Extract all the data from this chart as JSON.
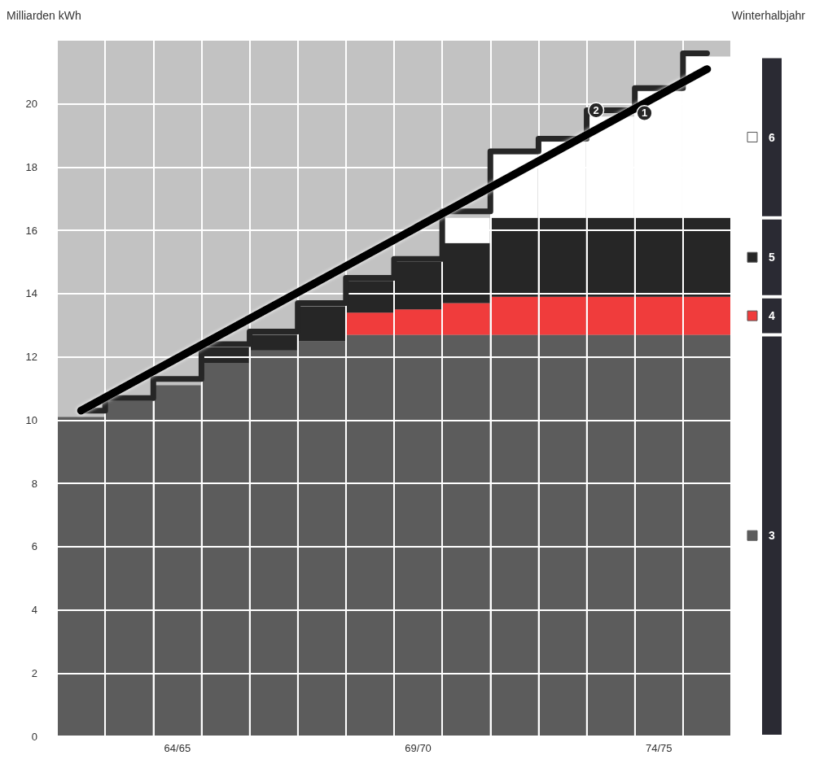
{
  "chart_data": {
    "type": "bar",
    "stacked": true,
    "ylabel": "Milliarden kWh",
    "xlabel": "Winterhalbjahr",
    "categories": [
      null,
      null,
      "64/65",
      null,
      null,
      null,
      null,
      "69/70",
      null,
      null,
      null,
      null,
      "74/75",
      null
    ],
    "series": [
      {
        "name": "3",
        "color": "#5c5c5c",
        "values": [
          10.1,
          10.6,
          11.1,
          11.8,
          12.2,
          12.5,
          12.7,
          12.7,
          12.7,
          12.7,
          12.7,
          12.7,
          12.7,
          12.7
        ]
      },
      {
        "name": "4",
        "color": "#f03c3c",
        "values": [
          0,
          0,
          0,
          0,
          0,
          0,
          0.7,
          0.8,
          1.0,
          1.2,
          1.2,
          1.2,
          1.2,
          1.2
        ]
      },
      {
        "name": "5",
        "color": "#262626",
        "values": [
          0,
          0,
          0,
          0.5,
          0.5,
          1.1,
          1.0,
          1.5,
          1.9,
          2.5,
          2.5,
          2.5,
          2.5,
          2.5
        ]
      },
      {
        "name": "6",
        "color": "#ffffff",
        "values": [
          0,
          0,
          0,
          0,
          0,
          0,
          0,
          0,
          0.8,
          2.0,
          2.4,
          3.2,
          4.0,
          5.1
        ]
      },
      {
        "name": "2",
        "type": "step",
        "color": "#262626",
        "values": [
          10.3,
          10.7,
          11.3,
          12.4,
          12.8,
          13.7,
          14.5,
          15.1,
          16.6,
          18.5,
          18.9,
          19.8,
          20.5,
          21.6
        ]
      },
      {
        "name": "1",
        "type": "line",
        "color": "#000000",
        "values": [
          10.3,
          null,
          null,
          null,
          null,
          null,
          null,
          null,
          null,
          null,
          null,
          null,
          null,
          21.1
        ]
      }
    ],
    "ylim": [
      0,
      22
    ],
    "yticks": [
      0,
      2,
      4,
      6,
      8,
      10,
      12,
      14,
      16,
      18,
      20
    ],
    "grid": true,
    "legend": "right",
    "marker": "none",
    "line_style": "solid"
  }
}
